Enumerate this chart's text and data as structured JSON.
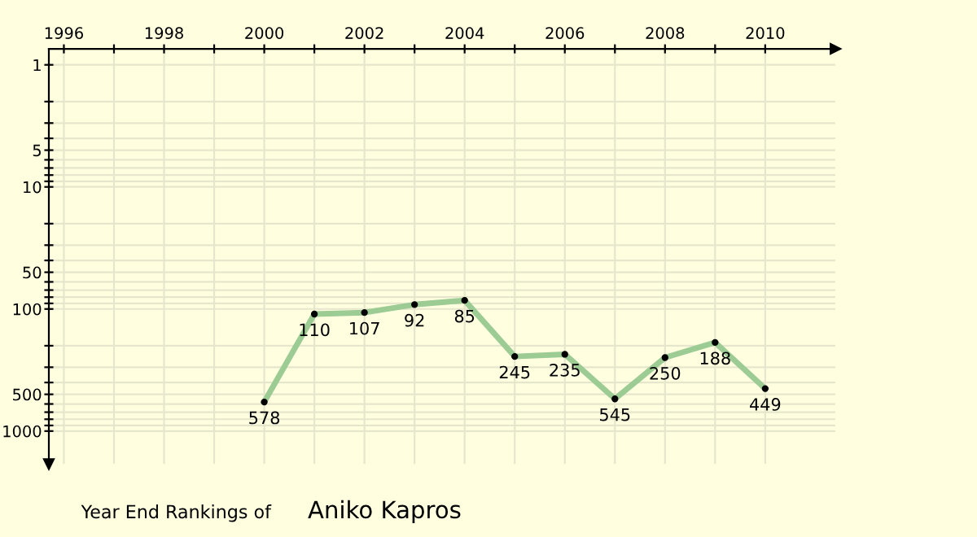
{
  "chart_data": {
    "type": "line",
    "title": "Year End Rankings of",
    "subtitle": "Aniko Kapros",
    "x": [
      2000,
      2001,
      2002,
      2003,
      2004,
      2005,
      2006,
      2007,
      2008,
      2009,
      2010
    ],
    "series": [
      {
        "color": "#9ccc94",
        "values": [
          578,
          110,
          107,
          92,
          85,
          245,
          235,
          545,
          250,
          188,
          449
        ]
      }
    ],
    "data_labels": true,
    "marker": "circle",
    "line_style": "solid",
    "log": "y",
    "grid": true,
    "xlim": [
      1995.7,
      2011.4
    ],
    "ylim": [
      1860,
      0.74
    ],
    "xticks": [
      1996,
      {
        "value": 1997,
        "label": null
      },
      1998,
      {
        "value": 1999,
        "label": null
      },
      2000,
      {
        "value": 2001,
        "label": null
      },
      2002,
      {
        "value": 2003,
        "label": null
      },
      2004,
      {
        "value": 2005,
        "label": null
      },
      2006,
      {
        "value": 2007,
        "label": null
      },
      2008,
      {
        "value": 2009,
        "label": null
      },
      2010
    ],
    "yticks": [
      1,
      {
        "value": 2,
        "label": null
      },
      {
        "value": 3,
        "label": null
      },
      {
        "value": 4,
        "label": null
      },
      5,
      {
        "value": 6,
        "label": null
      },
      {
        "value": 7,
        "label": null
      },
      {
        "value": 8,
        "label": null
      },
      {
        "value": 9,
        "label": null
      },
      10,
      {
        "value": 20,
        "label": null
      },
      {
        "value": 30,
        "label": null
      },
      {
        "value": 40,
        "label": null
      },
      50,
      {
        "value": 60,
        "label": null
      },
      {
        "value": 70,
        "label": null
      },
      {
        "value": 80,
        "label": null
      },
      {
        "value": 90,
        "label": null
      },
      100,
      {
        "value": 200,
        "label": null
      },
      {
        "value": 300,
        "label": null
      },
      {
        "value": 400,
        "label": null
      },
      500,
      {
        "value": 600,
        "label": null
      },
      {
        "value": 700,
        "label": null
      },
      {
        "value": 800,
        "label": null
      },
      {
        "value": 900,
        "label": null
      },
      1000
    ]
  }
}
